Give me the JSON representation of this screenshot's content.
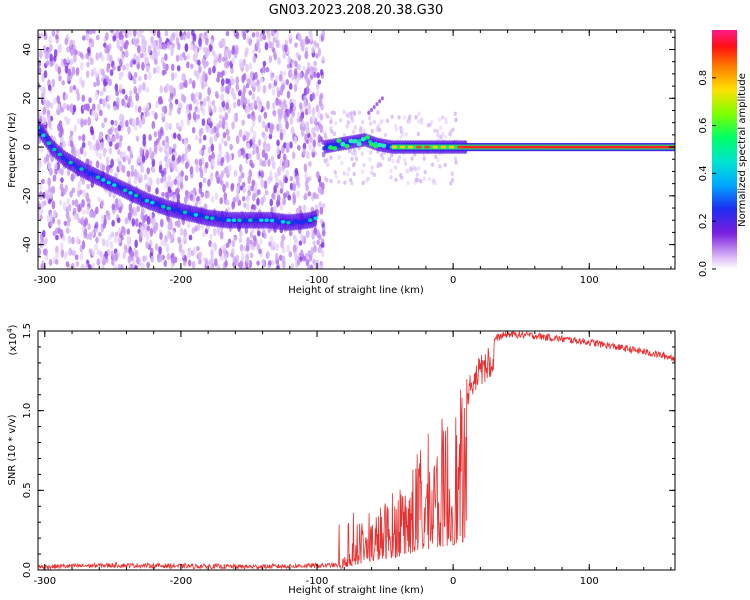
{
  "title": "GN03.2023.208.20.38.G30",
  "chart_data": [
    {
      "type": "heatmap",
      "xlabel": "Height of straight line (km)",
      "ylabel": "Frequency (Hz)",
      "xlim": [
        -305,
        163
      ],
      "ylim": [
        -50,
        48
      ],
      "xticks": [
        -300,
        -200,
        -100,
        0,
        100
      ],
      "xtick_labels": [
        "-300",
        "-200",
        "-100",
        "0",
        "100"
      ],
      "yticks": [
        -40,
        -20,
        0,
        20,
        40
      ],
      "ytick_labels": [
        "-40",
        "-20",
        "0",
        "20",
        "40"
      ],
      "colorbar": {
        "label": "Normalized spectral amplitude",
        "range": [
          0,
          1
        ],
        "ticks": [
          0,
          0.2,
          0.4,
          0.6,
          0.8
        ],
        "tick_labels": [
          "0.0",
          "0.2",
          "0.4",
          "0.6",
          "0.8"
        ]
      },
      "ridge": {
        "x": [
          -305,
          -295,
          -285,
          -270,
          -255,
          -240,
          -225,
          -210,
          -195,
          -180,
          -165,
          -150,
          -135,
          -120,
          -105,
          -100,
          -95,
          -85,
          -75,
          -65,
          -55,
          -45,
          -35,
          -25,
          -15,
          -5,
          0,
          20,
          60,
          100,
          163
        ],
        "y": [
          8,
          0,
          -5,
          -10,
          -14,
          -18,
          -22,
          -25,
          -27,
          -29,
          -30,
          -30,
          -30,
          -31,
          -30,
          -29,
          0,
          1,
          2,
          3,
          1,
          0,
          0,
          0,
          0,
          0,
          0,
          0,
          0,
          0,
          0
        ]
      },
      "grid": false
    },
    {
      "type": "line",
      "xlabel": "Height of straight line (km)",
      "ylabel": "SNR (10 * v/v)",
      "y_scale_note": "(x10",
      "y_scale_exp": "4",
      "y_scale_close": ")",
      "xlim": [
        -305,
        163
      ],
      "ylim": [
        0,
        1.5
      ],
      "xticks": [
        -300,
        -200,
        -100,
        0,
        100
      ],
      "xtick_labels": [
        "-300",
        "-200",
        "-100",
        "0",
        "100"
      ],
      "yticks": [
        0,
        0.5,
        1.0,
        1.5
      ],
      "ytick_labels": [
        "0.0",
        "0.5",
        "1.0",
        "1.5"
      ],
      "series": [
        {
          "color": "#e83030",
          "envelope": {
            "x": [
              -305,
              -250,
              -150,
              -85,
              -80,
              -70,
              -60,
              -50,
              -40,
              -30,
              -20,
              -10,
              0,
              10,
              20,
              30,
              40,
              60,
              80,
              100,
              120,
              140,
              163
            ],
            "y": [
              0.02,
              0.03,
              0.02,
              0.03,
              0.1,
              0.25,
              0.35,
              0.45,
              0.55,
              0.7,
              0.85,
              0.95,
              1.05,
              1.2,
              1.35,
              1.45,
              1.48,
              1.47,
              1.45,
              1.43,
              1.4,
              1.37,
              1.33
            ]
          }
        }
      ],
      "grid": false
    }
  ]
}
